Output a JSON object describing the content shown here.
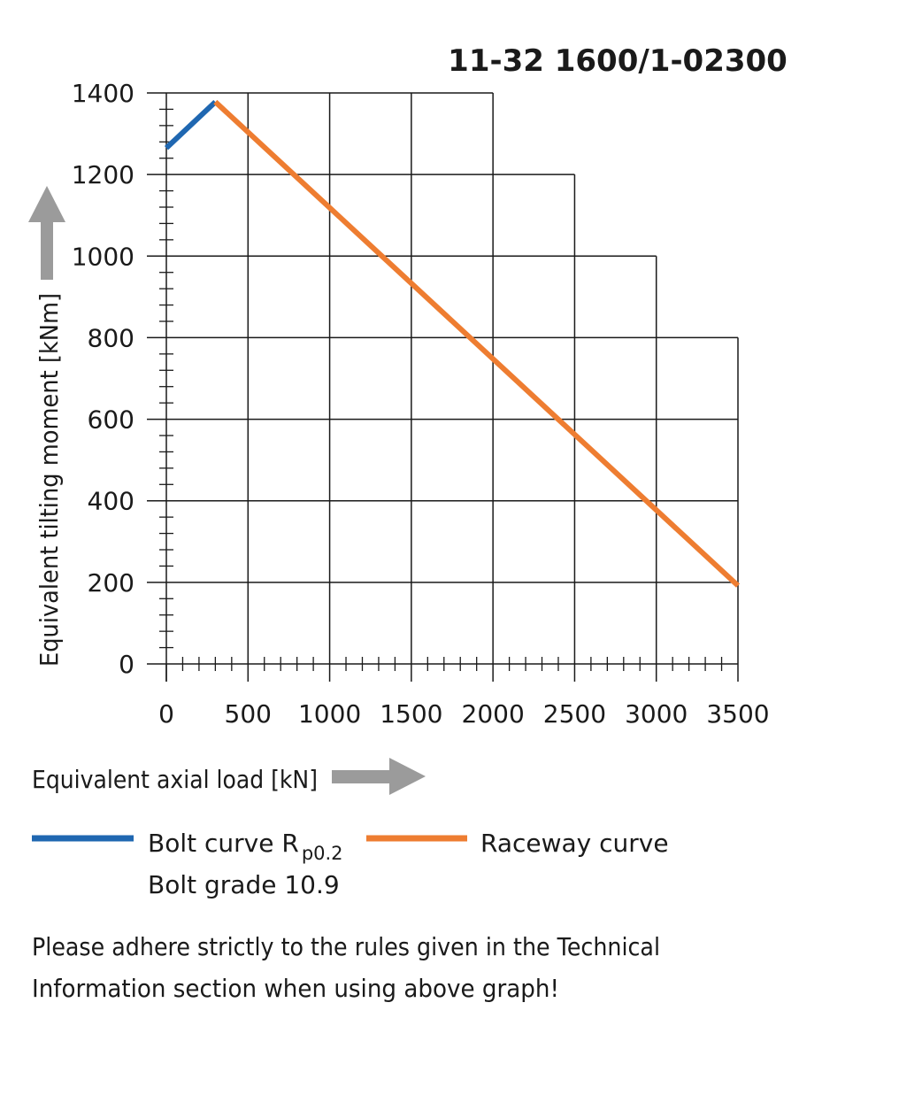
{
  "chart_data": {
    "type": "line",
    "title": "11-32 1600/1-02300",
    "xlabel": "Equivalent axial load [kN]",
    "ylabel": "Equivalent tilting moment [kNm]",
    "xlim": [
      0,
      3500
    ],
    "ylim": [
      0,
      1400
    ],
    "x_ticks": [
      0,
      500,
      1000,
      1500,
      2000,
      2500,
      3000,
      3500
    ],
    "y_ticks": [
      0,
      200,
      400,
      600,
      800,
      1000,
      1200,
      1400
    ],
    "grid": true,
    "grid_outline": [
      [
        0,
        1400
      ],
      [
        2000,
        1400
      ],
      [
        2000,
        1200
      ],
      [
        2500,
        1200
      ],
      [
        2500,
        1000
      ],
      [
        3000,
        1000
      ],
      [
        3000,
        800
      ],
      [
        3500,
        800
      ],
      [
        3500,
        0
      ]
    ],
    "series": [
      {
        "name": "Bolt curve",
        "color": "#1f67b1",
        "points": [
          [
            0,
            1265
          ],
          [
            300,
            1378
          ]
        ]
      },
      {
        "name": "Raceway curve",
        "color": "#ee7d31",
        "points": [
          [
            300,
            1378
          ],
          [
            3500,
            192
          ]
        ]
      }
    ]
  },
  "legend": {
    "bolt_label": "Bolt curve  R",
    "bolt_subscript": "p0.2",
    "bolt_grade": "Bolt grade 10.9",
    "raceway_label": "Raceway curve"
  },
  "note": {
    "line1": "Please adhere strictly to the rules given in the Technical",
    "line2": "Information section when using above graph!"
  },
  "colors": {
    "bolt": "#1f67b1",
    "raceway": "#ee7d31",
    "arrow": "#9b9b9b",
    "grid": "#1a1a1a"
  }
}
